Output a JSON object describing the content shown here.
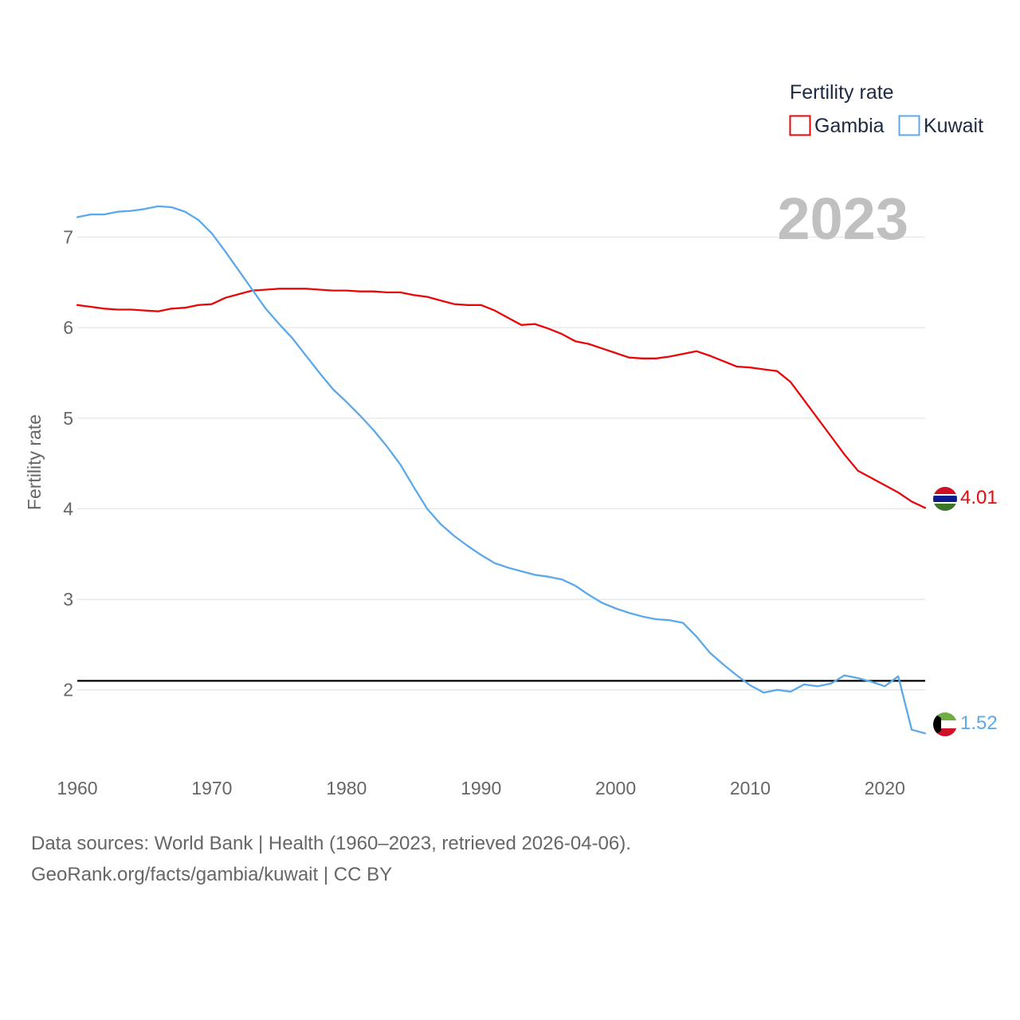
{
  "chart_data": {
    "type": "line",
    "ylabel": "Fertility rate",
    "year_label": "2023",
    "legend_title": "Fertility rate",
    "xlim": [
      1960,
      2023
    ],
    "ylim": [
      1.1,
      7.7
    ],
    "x_ticks": [
      "1960",
      "1970",
      "1980",
      "1990",
      "2000",
      "2010",
      "2020"
    ],
    "y_ticks": [
      "2",
      "3",
      "4",
      "5",
      "6",
      "7"
    ],
    "reference_line": 2.1,
    "x": [
      1960,
      1961,
      1962,
      1963,
      1964,
      1965,
      1966,
      1967,
      1968,
      1969,
      1970,
      1971,
      1972,
      1973,
      1974,
      1975,
      1976,
      1977,
      1978,
      1979,
      1980,
      1981,
      1982,
      1983,
      1984,
      1985,
      1986,
      1987,
      1988,
      1989,
      1990,
      1991,
      1992,
      1993,
      1994,
      1995,
      1996,
      1997,
      1998,
      1999,
      2000,
      2001,
      2002,
      2003,
      2004,
      2005,
      2006,
      2007,
      2008,
      2009,
      2010,
      2011,
      2012,
      2013,
      2014,
      2015,
      2016,
      2017,
      2018,
      2019,
      2020,
      2021,
      2022,
      2023
    ],
    "series": [
      {
        "name": "Gambia",
        "color": "#e8080a",
        "end_label": "4.01",
        "values": [
          6.25,
          6.23,
          6.21,
          6.2,
          6.2,
          6.19,
          6.18,
          6.21,
          6.22,
          6.25,
          6.26,
          6.33,
          6.37,
          6.41,
          6.42,
          6.43,
          6.43,
          6.43,
          6.42,
          6.41,
          6.41,
          6.4,
          6.4,
          6.39,
          6.39,
          6.36,
          6.34,
          6.3,
          6.26,
          6.25,
          6.25,
          6.19,
          6.11,
          6.03,
          6.04,
          5.99,
          5.93,
          5.85,
          5.82,
          5.77,
          5.72,
          5.67,
          5.66,
          5.66,
          5.68,
          5.71,
          5.74,
          5.69,
          5.63,
          5.57,
          5.56,
          5.54,
          5.52,
          5.4,
          5.2,
          5.0,
          4.8,
          4.6,
          4.42,
          4.34,
          4.26,
          4.18,
          4.08,
          4.01
        ]
      },
      {
        "name": "Kuwait",
        "color": "#5ba8ea",
        "end_label": "1.52",
        "values": [
          7.22,
          7.25,
          7.25,
          7.28,
          7.29,
          7.31,
          7.34,
          7.33,
          7.28,
          7.19,
          7.04,
          6.84,
          6.63,
          6.42,
          6.21,
          6.04,
          5.88,
          5.69,
          5.5,
          5.32,
          5.18,
          5.03,
          4.87,
          4.69,
          4.49,
          4.24,
          4.0,
          3.83,
          3.7,
          3.59,
          3.49,
          3.4,
          3.35,
          3.31,
          3.27,
          3.25,
          3.22,
          3.15,
          3.05,
          2.96,
          2.9,
          2.85,
          2.81,
          2.78,
          2.77,
          2.74,
          2.59,
          2.41,
          2.28,
          2.16,
          2.05,
          1.97,
          2.0,
          1.98,
          2.06,
          2.04,
          2.07,
          2.16,
          2.13,
          2.09,
          2.04,
          2.15,
          1.56,
          1.52
        ]
      }
    ]
  },
  "footer": {
    "source_line": "Data sources: World Bank | Health (1960–2023, retrieved 2026-04-06).",
    "credit_line": "GeoRank.org/facts/gambia/kuwait | CC BY"
  }
}
